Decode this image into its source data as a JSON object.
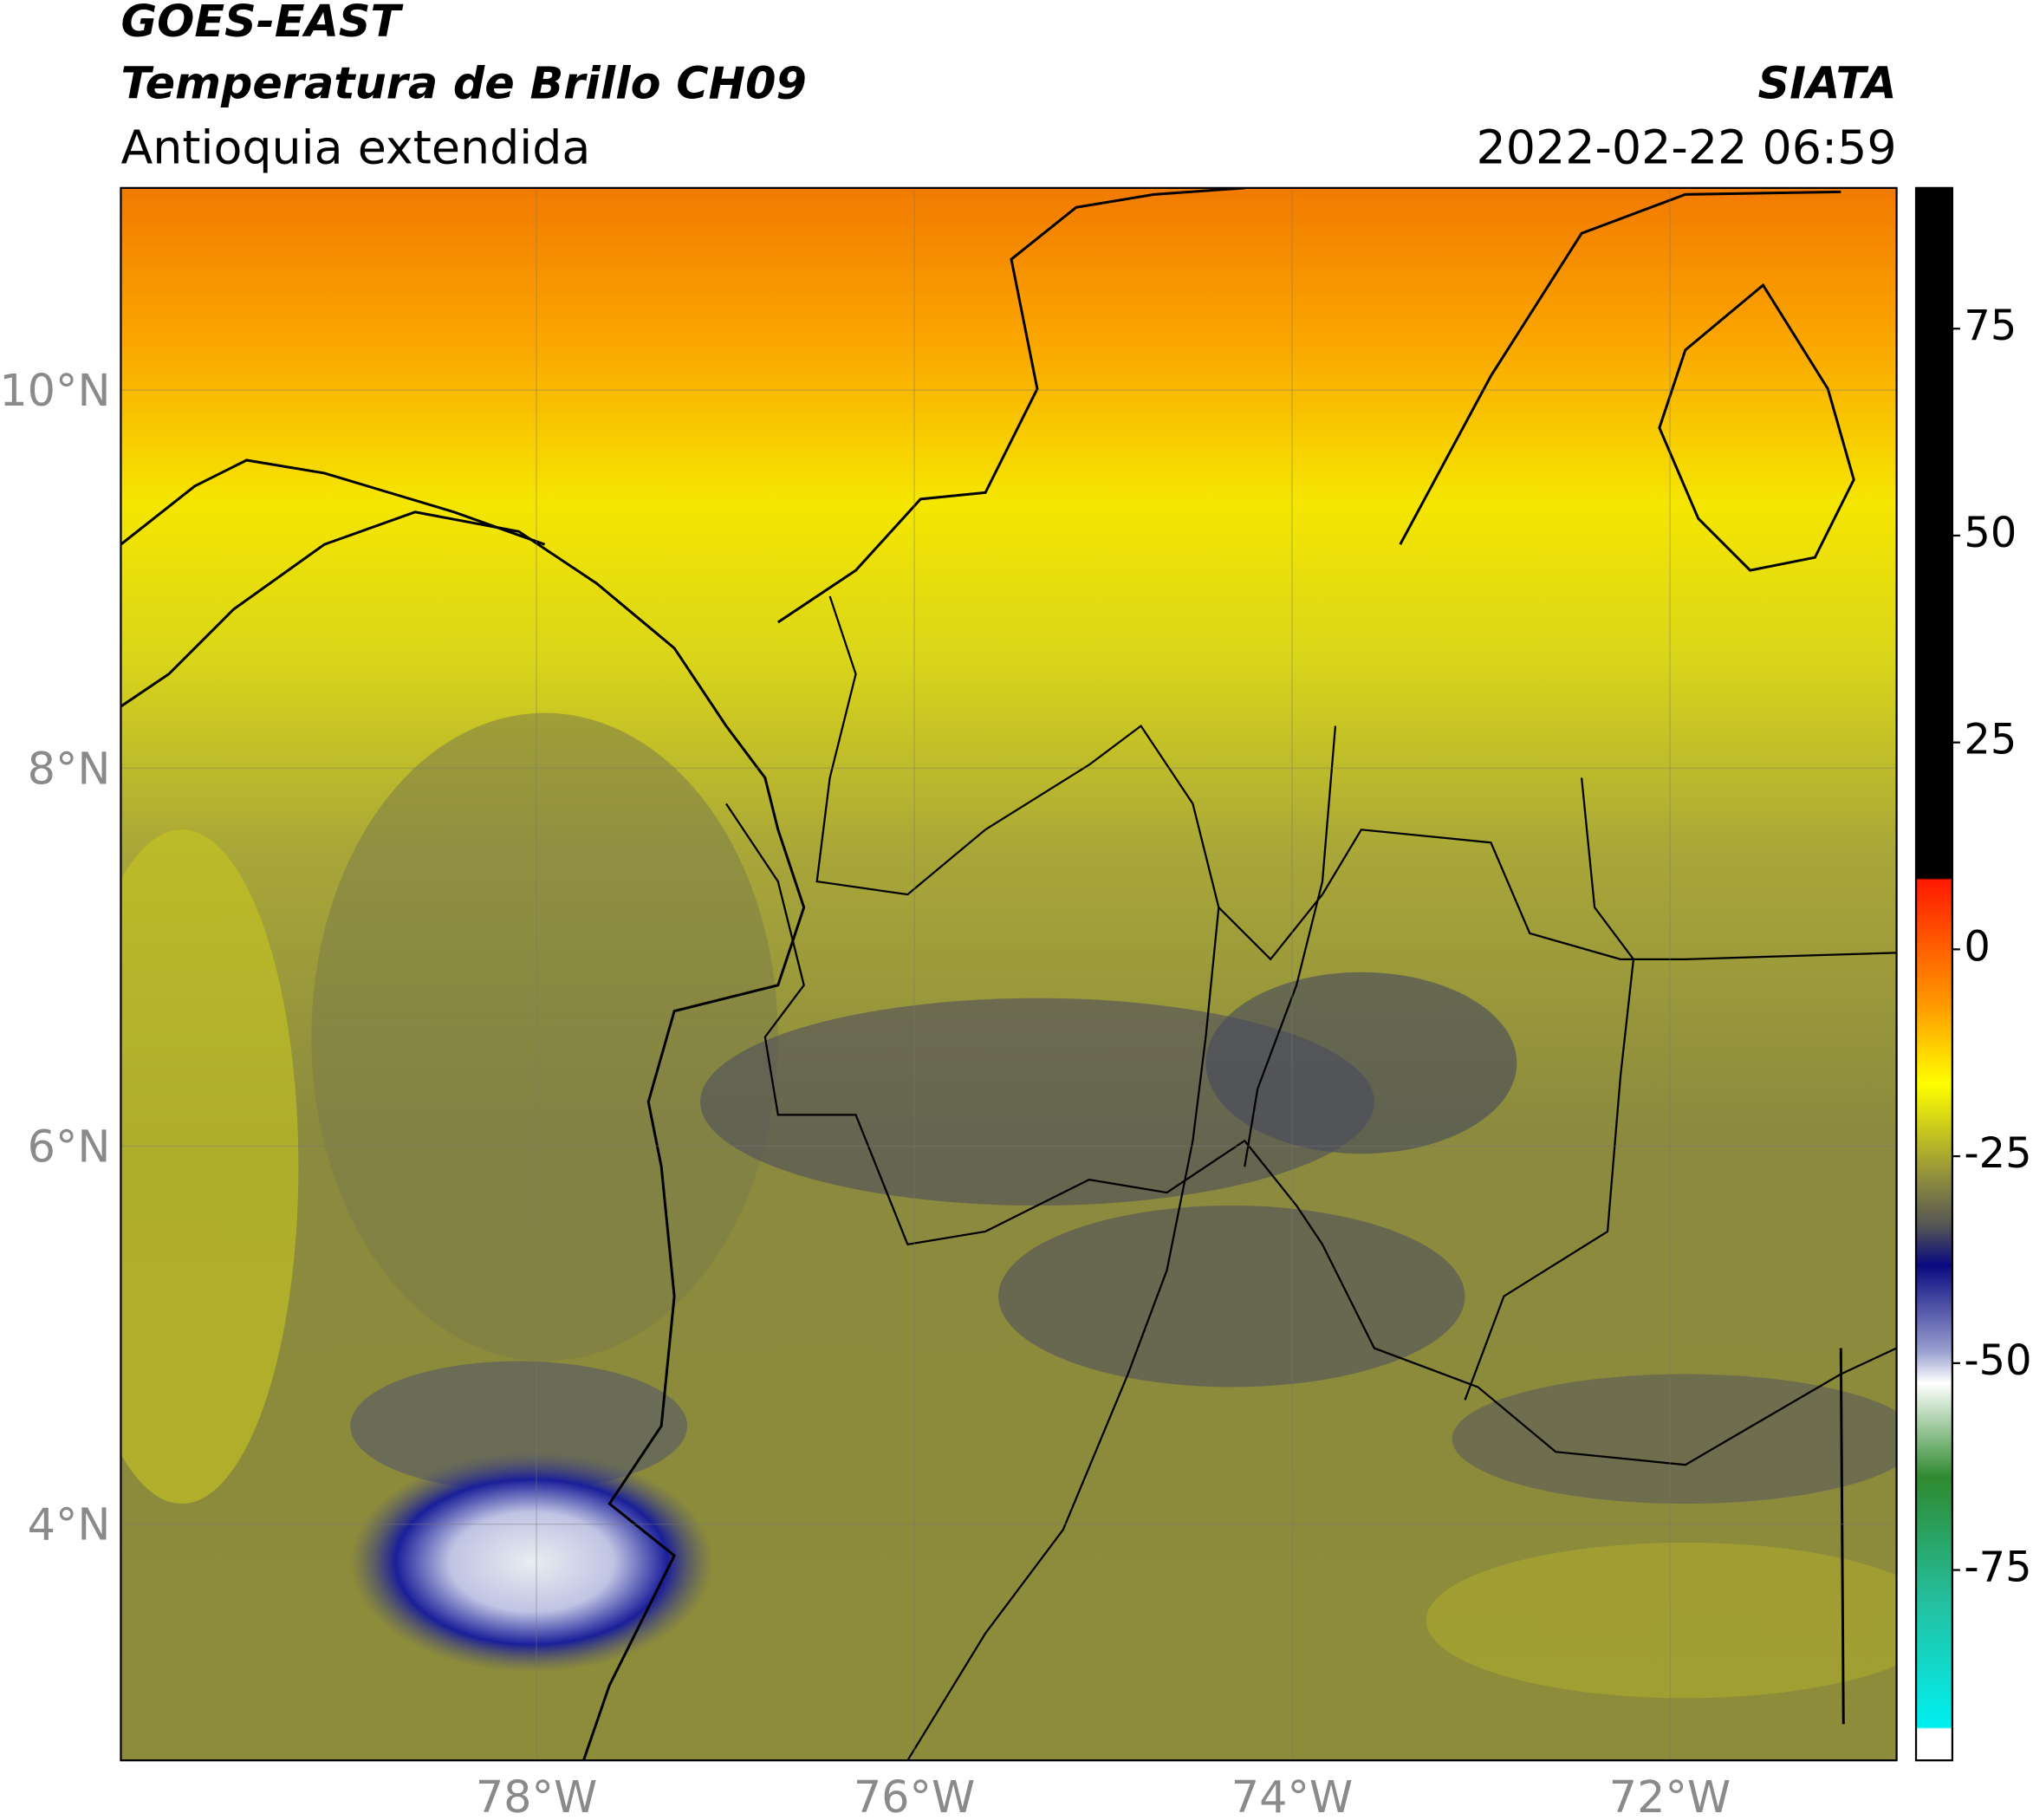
{
  "header": {
    "satellite": "GOES-EAST",
    "product": "Temperatura de Brillo CH09",
    "region": "Antioquia extendida",
    "source": "SIATA",
    "datetime": "2022-02-22 06:59"
  },
  "map": {
    "lonlim": [
      -80.2,
      -70.8
    ],
    "latlim": [
      2.75,
      11.07
    ],
    "lon_ticks": [
      {
        "value": -78,
        "label": "78°W"
      },
      {
        "value": -76,
        "label": "76°W"
      },
      {
        "value": -74,
        "label": "74°W"
      },
      {
        "value": -72,
        "label": "72°W"
      }
    ],
    "lat_ticks": [
      {
        "value": 10,
        "label": "10°N"
      },
      {
        "value": 8,
        "label": "8°N"
      },
      {
        "value": 6,
        "label": "6°N"
      },
      {
        "value": 4,
        "label": "4°N"
      }
    ],
    "grid": true
  },
  "colorbar": {
    "lim": [
      -98,
      92
    ],
    "ticks": [
      75,
      50,
      25,
      0,
      -25,
      -50,
      -75
    ]
  }
}
